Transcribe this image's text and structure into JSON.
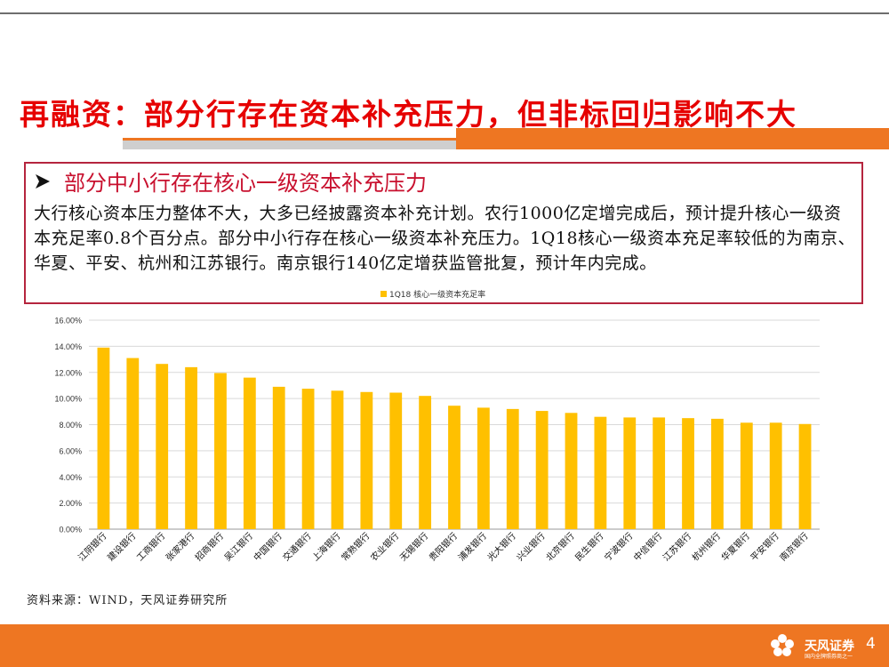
{
  "slide": {
    "title": "再融资：部分行存在资本补充压力，但非标回归影响不大",
    "box_heading": "部分中小行存在核心一级资本补充压力",
    "box_text": "大行核心资本压力整体不大，大多已经披露资本补充计划。农行1000亿定增完成后，预计提升核心一级资本充足率0.8个百分点。部分中小行存在核心一级资本补充压力。1Q18核心一级资本充足率较低的为南京、华夏、平安、杭州和江苏银行。南京银行140亿定增获监管批复，预计年内完成。",
    "source": "资料来源：WIND，天风证券研究所",
    "logo_text": "天风证券",
    "logo_sub": "国内全牌照券商之一",
    "page_number": "4",
    "colors": {
      "title": "#e60000",
      "accent": "#ee7622",
      "bar": "#ffc000",
      "box_border": "#b5253e"
    }
  },
  "chart_data": {
    "type": "bar",
    "categories": [
      "江阴银行",
      "建设银行",
      "工商银行",
      "张家港行",
      "招商银行",
      "吴江银行",
      "中国银行",
      "交通银行",
      "上海银行",
      "常熟银行",
      "农业银行",
      "无锡银行",
      "贵阳银行",
      "浦发银行",
      "光大银行",
      "兴业银行",
      "北京银行",
      "民生银行",
      "宁波银行",
      "中信银行",
      "江苏银行",
      "杭州银行",
      "华夏银行",
      "平安银行",
      "南京银行"
    ],
    "series": [
      {
        "name": "1Q18 核心一级资本充足率",
        "values": [
          13.9,
          13.1,
          12.65,
          12.4,
          11.95,
          11.6,
          10.9,
          10.75,
          10.6,
          10.5,
          10.45,
          10.2,
          9.45,
          9.3,
          9.2,
          9.05,
          8.9,
          8.6,
          8.55,
          8.55,
          8.5,
          8.45,
          8.15,
          8.15,
          8.05
        ]
      }
    ],
    "y_ticks": [
      "0.00%",
      "2.00%",
      "4.00%",
      "6.00%",
      "8.00%",
      "10.00%",
      "12.00%",
      "14.00%",
      "16.00%"
    ],
    "ylim": [
      0,
      16
    ],
    "legend_position": "top",
    "grid": true
  }
}
